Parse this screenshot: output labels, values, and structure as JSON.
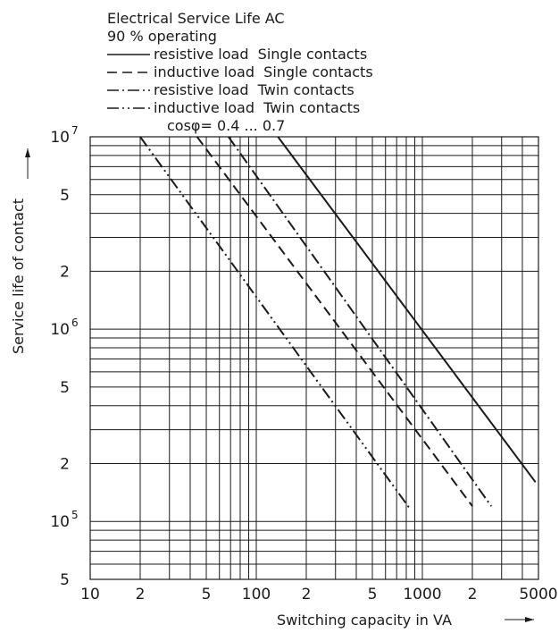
{
  "chart_data": {
    "type": "line",
    "title": "Electrical Service Life AC",
    "subtitle": "90 % operating",
    "note": "cosφ= 0.4 ... 0.7",
    "xlabel": "Switching capacity in VA",
    "ylabel": "Service life of contact",
    "x_scale": "log",
    "y_scale": "log",
    "xlim": [
      10,
      5000
    ],
    "ylim": [
      50000,
      10000000
    ],
    "grid": true,
    "legend_position": "top",
    "x_ticks": [
      {
        "value": 10,
        "label": "10"
      },
      {
        "value": 20,
        "label": "2"
      },
      {
        "value": 50,
        "label": "5"
      },
      {
        "value": 100,
        "label": "100"
      },
      {
        "value": 200,
        "label": "2"
      },
      {
        "value": 500,
        "label": "5"
      },
      {
        "value": 1000,
        "label": "1000"
      },
      {
        "value": 2000,
        "label": "2"
      },
      {
        "value": 5000,
        "label": "5000"
      }
    ],
    "y_ticks": [
      {
        "value": 50000,
        "base": "5",
        "exp": ""
      },
      {
        "value": 100000,
        "base": "10",
        "exp": "5"
      },
      {
        "value": 200000,
        "base": "2",
        "exp": ""
      },
      {
        "value": 500000,
        "base": "5",
        "exp": ""
      },
      {
        "value": 1000000,
        "base": "10",
        "exp": "6"
      },
      {
        "value": 2000000,
        "base": "2",
        "exp": ""
      },
      {
        "value": 5000000,
        "base": "5",
        "exp": ""
      },
      {
        "value": 10000000,
        "base": "10",
        "exp": "7"
      }
    ],
    "series": [
      {
        "name": "resistive load  Single contacts",
        "dash": "solid",
        "points": [
          [
            135,
            10000000
          ],
          [
            4800,
            160000
          ]
        ]
      },
      {
        "name": "inductive load  Single contacts",
        "dash": "dash",
        "points": [
          [
            44,
            10000000
          ],
          [
            2000,
            120000
          ]
        ]
      },
      {
        "name": "resistive load  Twin contacts",
        "dash": "dashdot",
        "points": [
          [
            68,
            10000000
          ],
          [
            2600,
            120000
          ]
        ]
      },
      {
        "name": "inductive load  Twin contacts",
        "dash": "dashdotdot",
        "points": [
          [
            20,
            10000000
          ],
          [
            850,
            115000
          ]
        ]
      }
    ]
  }
}
